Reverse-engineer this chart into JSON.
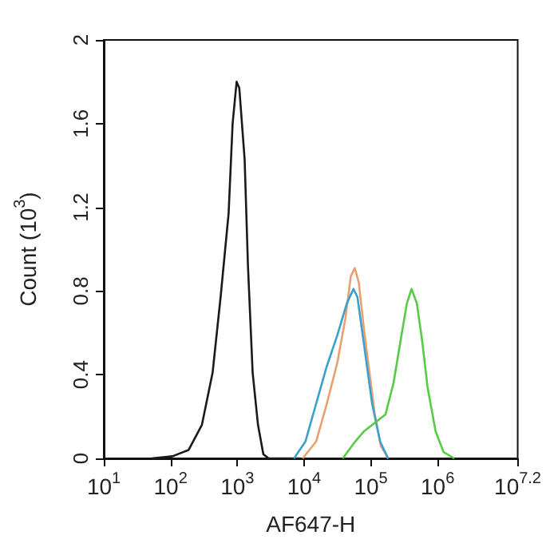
{
  "chart_data": {
    "type": "line",
    "xlabel": "AF647-H",
    "ylabel": "Count (10$^{3}$)",
    "log": "x",
    "xlim": [
      10,
      15848932
    ],
    "xticks": [
      {
        "value": 10,
        "label": "10$^{1}$"
      },
      {
        "value": 100,
        "label": "10$^{2}$"
      },
      {
        "value": 1000,
        "label": "10$^{3}$"
      },
      {
        "value": 10000,
        "label": "10$^{4}$"
      },
      {
        "value": 100000,
        "label": "10$^{5}$"
      },
      {
        "value": 1000000,
        "label": "10$^{6}$"
      },
      {
        "value": 15848932,
        "label": "10$^{7.2}$"
      }
    ],
    "ylim": [
      0,
      2
    ],
    "yticks": [
      0,
      0.4,
      0.8,
      1.2,
      1.6,
      2
    ],
    "grid": false,
    "marker": "none",
    "line_style": "solid",
    "series": [
      {
        "color": "#1a1a1a",
        "x": [
          52,
          107,
          186,
          295,
          427,
          562,
          741,
          851,
          977,
          1072,
          1288,
          1445,
          1698,
          2042,
          2455,
          2951,
          8710
        ],
        "values": [
          0,
          0.01,
          0.04,
          0.16,
          0.41,
          0.77,
          1.17,
          1.6,
          1.8,
          1.77,
          1.43,
          0.92,
          0.41,
          0.16,
          0.02,
          0,
          0
        ]
      },
      {
        "color": "#e8a070",
        "x": [
          9550,
          15136,
          21878,
          31623,
          41687,
          50119,
          57544,
          66069,
          79433,
          95499,
          114815,
          141254,
          181970
        ],
        "values": [
          0,
          0.08,
          0.26,
          0.46,
          0.67,
          0.87,
          0.91,
          0.84,
          0.61,
          0.41,
          0.21,
          0.06,
          0
        ]
      },
      {
        "color": "#3aa0cc",
        "x": [
          7079,
          10471,
          15136,
          21878,
          31623,
          43652,
          54954,
          63096,
          79433,
          104713,
          138038,
          181970
        ],
        "values": [
          0,
          0.08,
          0.26,
          0.44,
          0.59,
          0.74,
          0.81,
          0.77,
          0.54,
          0.26,
          0.08,
          0
        ]
      },
      {
        "color": "#55cc44",
        "x": [
          38019,
          54954,
          79433,
          114815,
          165959,
          218776,
          288403,
          346737,
          407380,
          489779,
          588844,
          707946,
          933254,
          1230269,
          1778279
        ],
        "values": [
          0,
          0.07,
          0.13,
          0.17,
          0.21,
          0.36,
          0.59,
          0.74,
          0.81,
          0.74,
          0.56,
          0.34,
          0.13,
          0.03,
          0
        ]
      }
    ]
  }
}
